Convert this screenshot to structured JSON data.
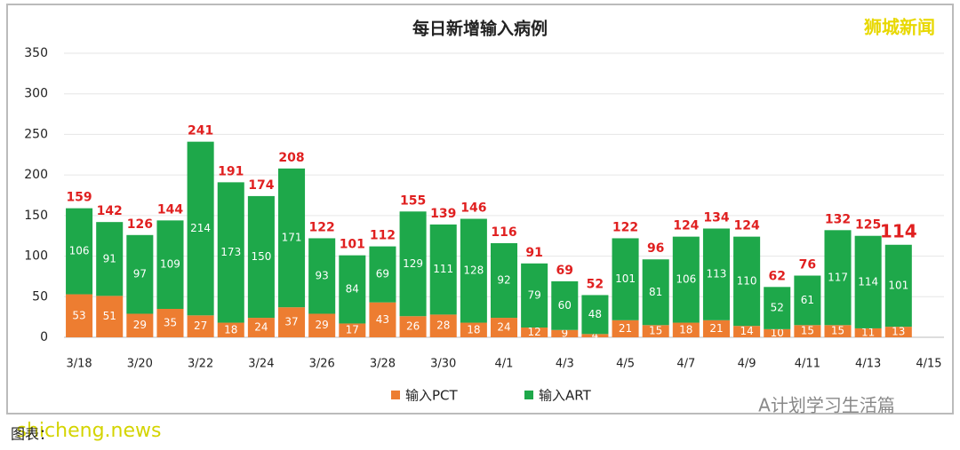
{
  "chart_data": {
    "type": "stacked-bar",
    "title": "每日新增输入病例",
    "categories": [
      "3/18",
      null,
      "3/20",
      null,
      "3/22",
      null,
      "3/24",
      null,
      "3/26",
      null,
      "3/28",
      null,
      "3/30",
      null,
      "4/1",
      null,
      "4/3",
      null,
      "4/5",
      null,
      "4/7",
      null,
      "4/9",
      null,
      "4/11",
      null,
      "4/13",
      null,
      "4/15"
    ],
    "series": [
      {
        "name": "输入PCT",
        "color": "#ed7d31",
        "values": [
          53,
          51,
          29,
          35,
          27,
          18,
          24,
          37,
          29,
          17,
          43,
          26,
          28,
          18,
          24,
          12,
          9,
          4,
          21,
          15,
          18,
          21,
          14,
          10,
          15,
          15,
          11,
          13,
          null
        ]
      },
      {
        "name": "输入ART",
        "color": "#1ea84a",
        "values": [
          106,
          91,
          97,
          109,
          214,
          173,
          150,
          171,
          93,
          84,
          69,
          129,
          111,
          128,
          92,
          79,
          60,
          48,
          101,
          81,
          106,
          113,
          110,
          52,
          61,
          117,
          114,
          101,
          null
        ]
      }
    ],
    "totals": [
      159,
      142,
      126,
      144,
      241,
      191,
      174,
      208,
      122,
      101,
      112,
      155,
      139,
      146,
      116,
      91,
      69,
      52,
      122,
      96,
      124,
      134,
      124,
      62,
      76,
      132,
      125,
      114,
      null
    ],
    "ylim": [
      0,
      350
    ],
    "yticks": [
      0,
      50,
      100,
      150,
      200,
      250,
      300,
      350
    ],
    "grid": true
  },
  "watermarks": {
    "top_right": "狮城新闻",
    "bottom_right": "A计划学习生活篇",
    "bottom_left": "shicheng.news",
    "caption": "图表："
  }
}
